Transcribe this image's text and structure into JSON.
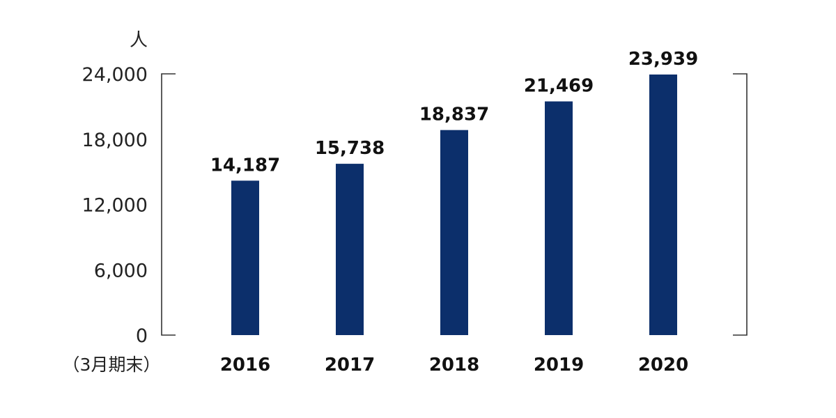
{
  "chart_data": {
    "type": "bar",
    "categories": [
      "2016",
      "2017",
      "2018",
      "2019",
      "2020"
    ],
    "values": [
      14187,
      15738,
      18837,
      21469,
      23939
    ],
    "data_labels": [
      "14,187",
      "15,738",
      "18,837",
      "21,469",
      "23,939"
    ],
    "title": "",
    "xlabel": "（3月期末）",
    "ylabel": "人",
    "ylim": [
      0,
      24000
    ],
    "yticks": [
      0,
      6000,
      12000,
      18000,
      24000
    ],
    "ytick_labels": [
      "0",
      "6,000",
      "12,000",
      "18,000",
      "24,000"
    ],
    "grid": false,
    "legend": "none",
    "bar_color": "#0c2f6b"
  }
}
